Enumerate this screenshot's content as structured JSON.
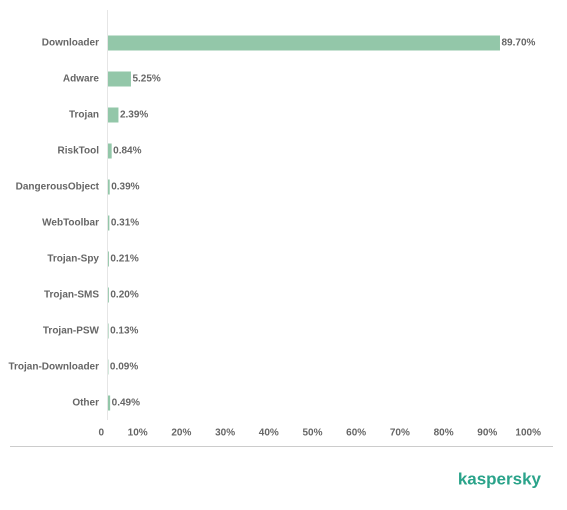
{
  "chart_data": {
    "type": "hbar",
    "categories": [
      "Downloader",
      "Adware",
      "Trojan",
      "RiskTool",
      "DangerousObject",
      "WebToolbar",
      "Trojan-Spy",
      "Trojan-SMS",
      "Trojan-PSW",
      "Trojan-Downloader",
      "Other"
    ],
    "values": [
      89.7,
      5.25,
      2.39,
      0.84,
      0.39,
      0.31,
      0.21,
      0.2,
      0.13,
      0.09,
      0.49
    ],
    "value_labels": [
      "89.70%",
      "5.25%",
      "2.39%",
      "0.84%",
      "0.39%",
      "0.31%",
      "0.21%",
      "0.20%",
      "0.13%",
      "0.09%",
      "0.49%"
    ],
    "color": "#93c7a9",
    "xlim": [
      0,
      100
    ],
    "xticks": [
      0,
      {
        "value": 10,
        "label": "10%"
      },
      {
        "value": 20,
        "label": "20%"
      },
      {
        "value": 30,
        "label": "30%"
      },
      {
        "value": 40,
        "label": "40%"
      },
      {
        "value": 50,
        "label": "50%"
      },
      {
        "value": 60,
        "label": "60%"
      },
      {
        "value": 70,
        "label": "70%"
      },
      {
        "value": 80,
        "label": "80%"
      },
      {
        "value": 90,
        "label": "90%"
      },
      {
        "value": 100,
        "label": "100%"
      }
    ],
    "logo": "kaspersky"
  }
}
